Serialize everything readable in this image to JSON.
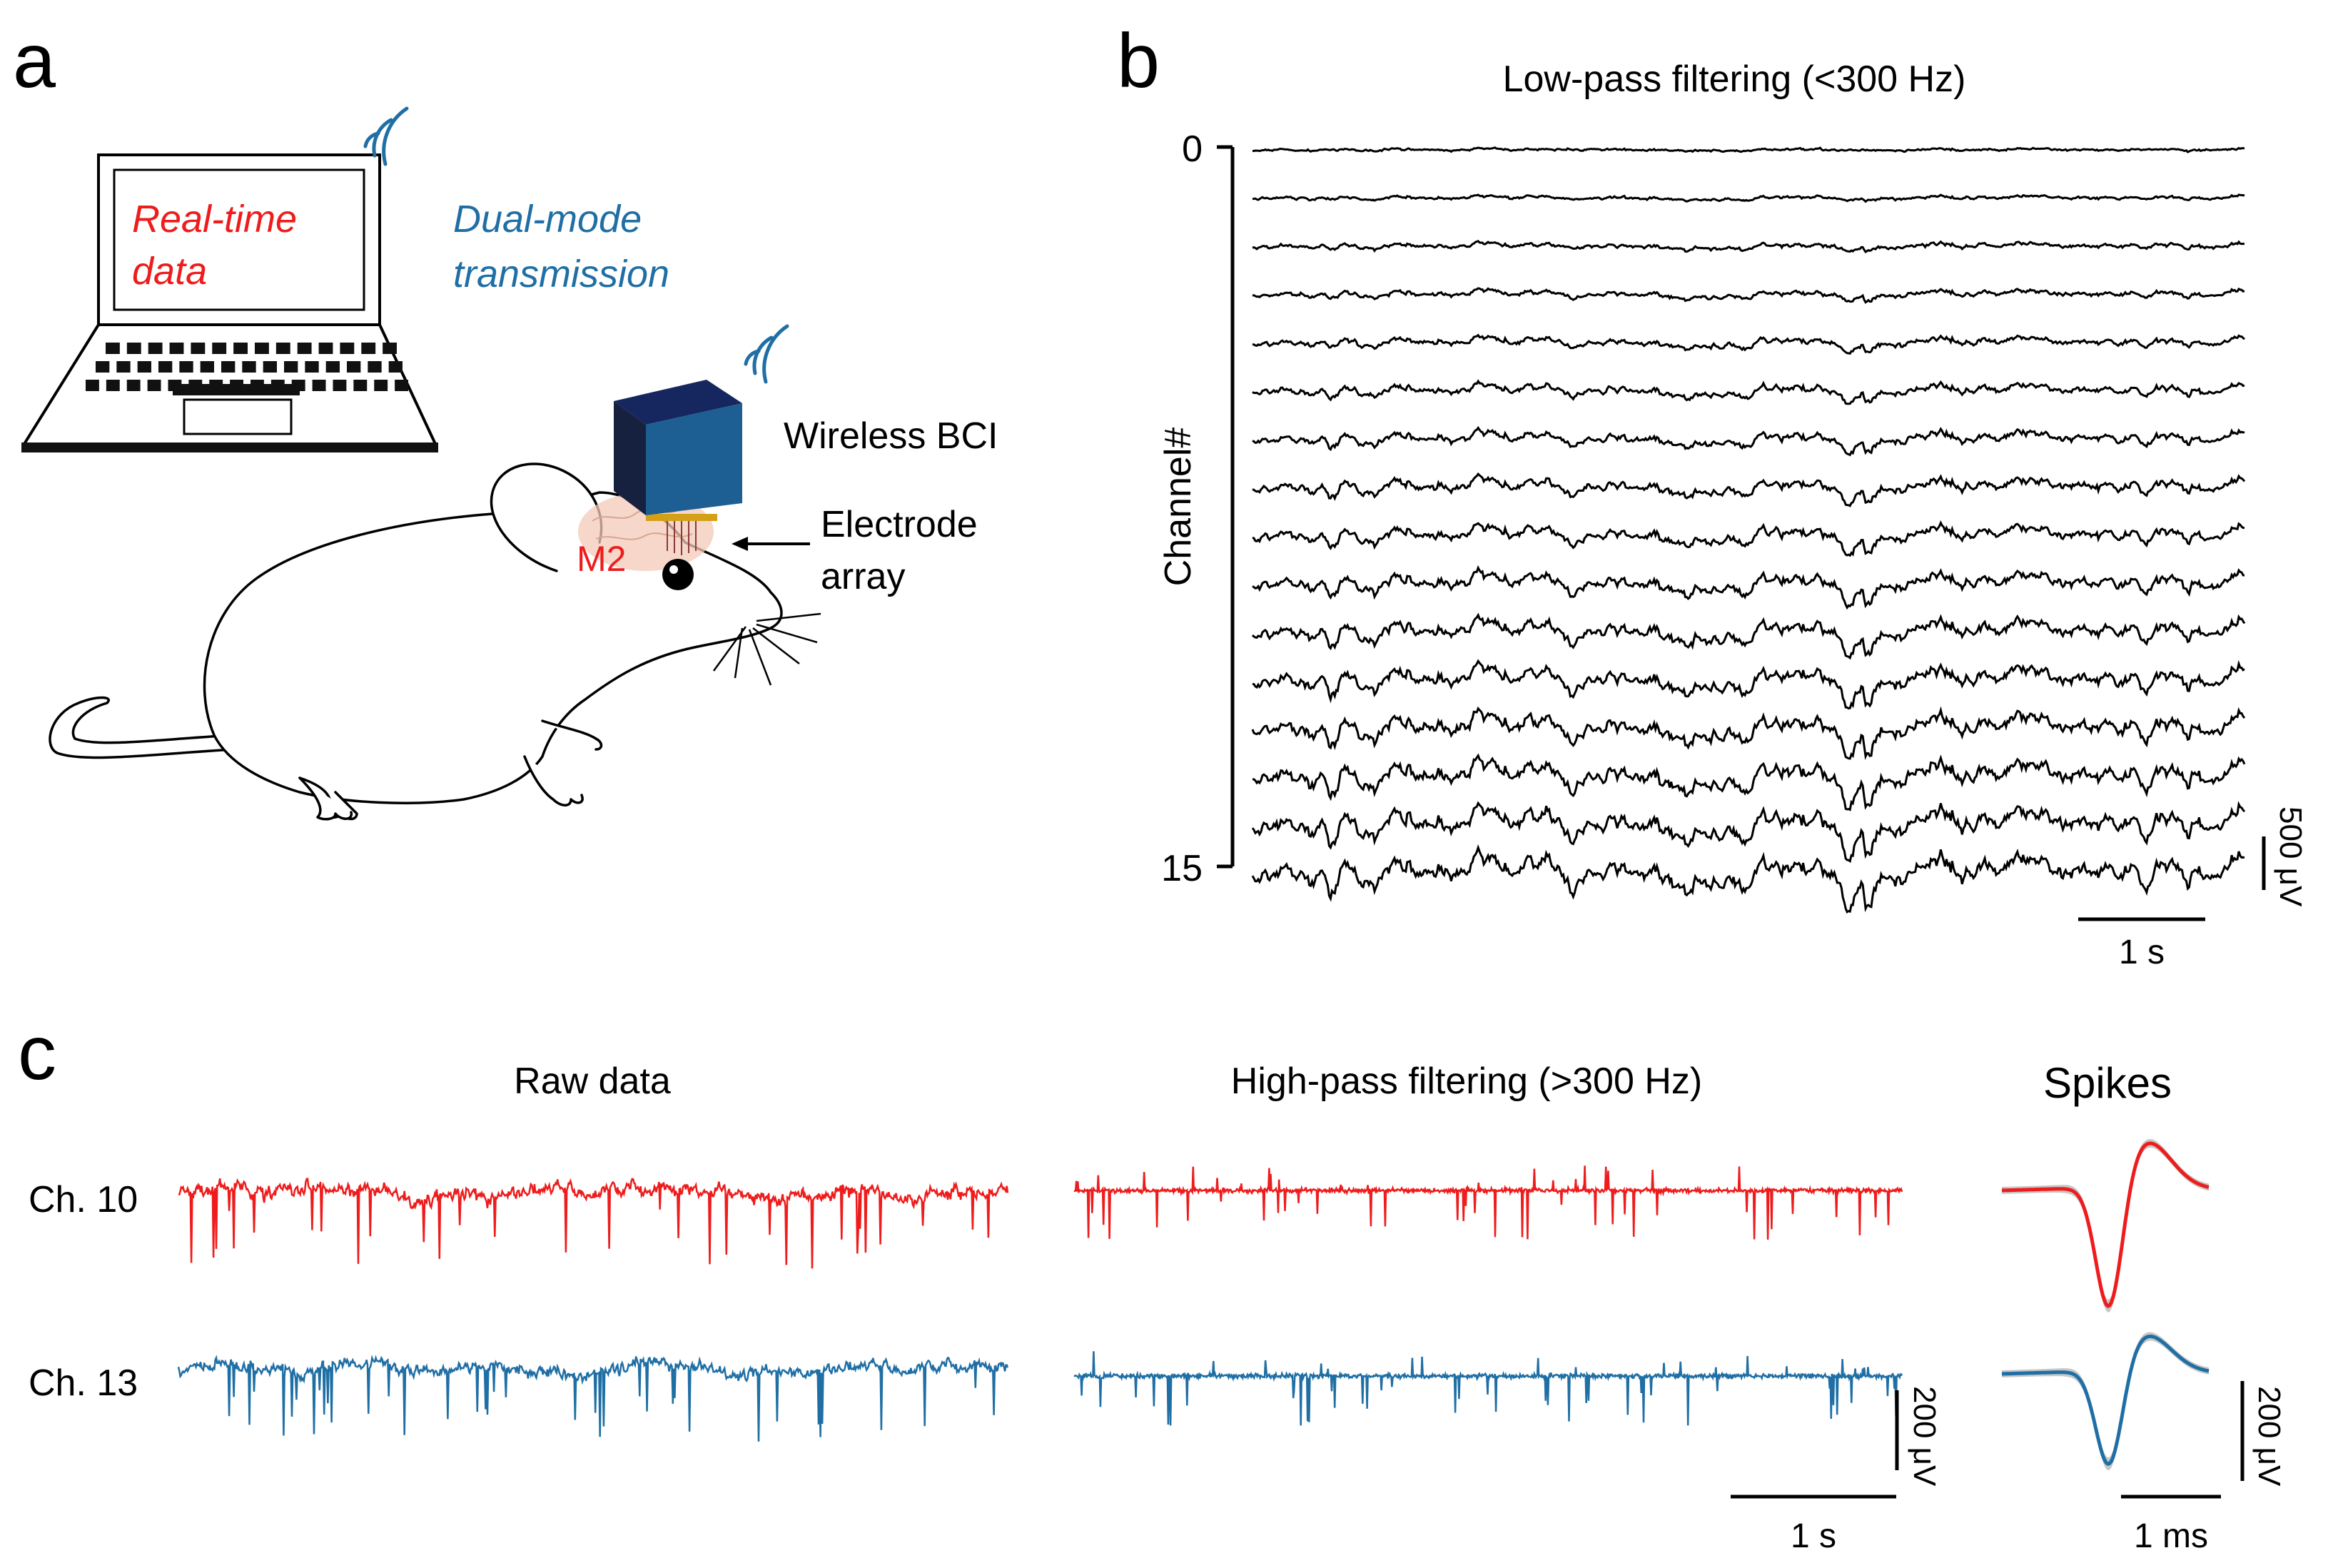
{
  "panel_labels": {
    "a": "a",
    "b": "b",
    "c": "c"
  },
  "colors": {
    "red": "#ee1c1c",
    "blue": "#1f6fa5",
    "black": "#000000",
    "box_front": "#1d5f92",
    "box_top": "#15275e",
    "box_side": "#16203f",
    "gold": "#d4a017",
    "brain": "#f3c9b8"
  },
  "panel_a": {
    "laptop_text": [
      "Real-time",
      "data"
    ],
    "transmission_text": [
      "Dual-mode",
      "transmission"
    ],
    "bci_label": "Wireless BCI",
    "electrode_label": [
      "Electrode",
      "array"
    ],
    "region_label": "M2"
  },
  "panel_b": {
    "title": "Low-pass filtering (<300 Hz)",
    "y_axis_label": "Channel#",
    "y_tick_top": "0",
    "y_tick_bottom": "15",
    "scalebar_voltage": "500 μV",
    "scalebar_time": "1 s"
  },
  "panel_c": {
    "raw_title": "Raw data",
    "hp_title": "High-pass filtering (>300 Hz)",
    "spikes_title": "Spikes",
    "channel_1": "Ch. 10",
    "channel_2": "Ch. 13",
    "scalebar_voltage_1": "200 μV",
    "scalebar_time_1": "1 s",
    "scalebar_voltage_2": "200 μV",
    "scalebar_time_2": "1 ms"
  },
  "chart_data": [
    {
      "type": "line",
      "title": "Low-pass filtering (<300 Hz)",
      "ylabel": "Channel#",
      "channels": [
        0,
        15
      ],
      "n_traces": 16,
      "scalebar": {
        "voltage_uV": 500,
        "time_s": 1
      },
      "note": "16 stacked LFP traces; amplitude increases with channel number"
    },
    {
      "type": "line",
      "title": "Raw data",
      "series": [
        {
          "name": "Ch. 10",
          "color": "#ee1c1c"
        },
        {
          "name": "Ch. 13",
          "color": "#1f6fa5"
        }
      ]
    },
    {
      "type": "line",
      "title": "High-pass filtering (>300 Hz)",
      "series": [
        {
          "name": "Ch. 10",
          "color": "#ee1c1c"
        },
        {
          "name": "Ch. 13",
          "color": "#1f6fa5"
        }
      ],
      "scalebar": {
        "voltage_uV": 200,
        "time_s": 1
      }
    },
    {
      "type": "line",
      "title": "Spikes",
      "series": [
        {
          "name": "Ch. 10",
          "color": "#ee1c1c"
        },
        {
          "name": "Ch. 13",
          "color": "#1f6fa5"
        }
      ],
      "scalebar": {
        "voltage_uV": 200,
        "time_ms": 1
      }
    }
  ]
}
